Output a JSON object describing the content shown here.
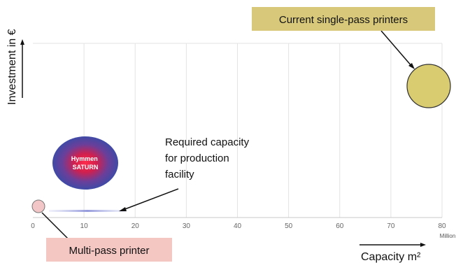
{
  "chart_data": {
    "type": "scatter",
    "xlabel": "Capacity m²",
    "ylabel": "Investment in €",
    "x_unit": "Million",
    "x_ticks": [
      0,
      10,
      20,
      30,
      40,
      50,
      60,
      70,
      80
    ],
    "xlim": [
      0,
      80
    ],
    "grid": true,
    "series": [
      {
        "name": "Multi-pass printer",
        "x": 1,
        "y": 4
      },
      {
        "name": "Hymmen SATURN",
        "x": 10,
        "y": 30
      },
      {
        "name": "Current single-pass printers",
        "x": 77,
        "y": 82
      }
    ],
    "annotations": [
      {
        "text": "Current single-pass printers"
      },
      {
        "text": "Multi-pass printer"
      },
      {
        "lines": [
          "Required capacity",
          "for production",
          "facility"
        ]
      }
    ],
    "bubble_label": [
      "Hymmen",
      "SATURN"
    ],
    "colors": {
      "multi_pass_fill": "#f2c6c6",
      "single_pass_fill": "#d9cb6f",
      "saturn_outer": "#4a4fa8",
      "saturn_inner": "#e8174a",
      "callout_yellow": "#d8c97a",
      "callout_pink": "#f4c7c3"
    }
  }
}
